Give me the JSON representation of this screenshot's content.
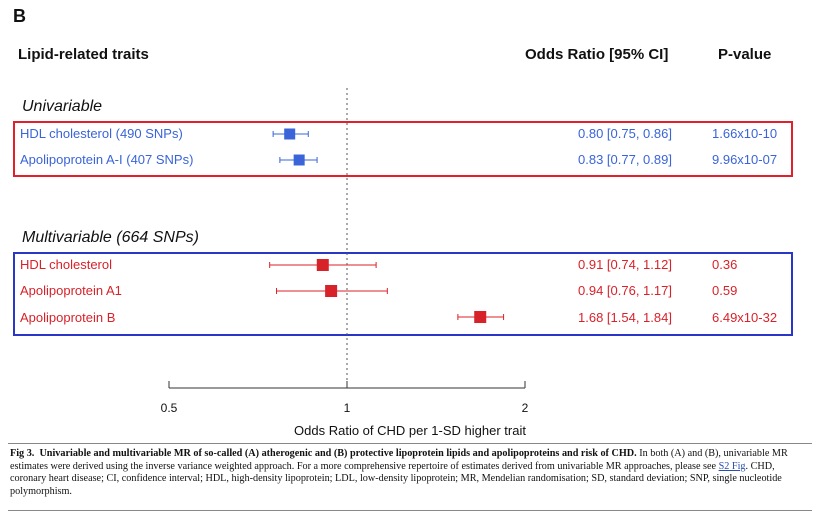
{
  "panel_letter": "B",
  "headers": {
    "traits": "Lipid-related traits",
    "or": "Odds Ratio [95% CI]",
    "p": "P-value"
  },
  "groups": [
    {
      "title": "Univariable"
    },
    {
      "title": "Multivariable (664 SNPs)"
    }
  ],
  "colors": {
    "univariable": "#3a64d8",
    "multivariable": "#d8222a",
    "univariable_box": "#e0202a",
    "multivariable_box": "#2a36c8"
  },
  "chart_data": {
    "type": "forest",
    "xlabel": "Odds Ratio of CHD per 1-SD higher trait",
    "x_scale": "log",
    "xlim": [
      0.5,
      2
    ],
    "ticks": [
      0.5,
      1,
      2
    ],
    "tick_labels": [
      "0.5",
      "1",
      "2"
    ],
    "reference_line": 1,
    "rows": [
      {
        "group": 0,
        "label": "HDL cholesterol (490 SNPs)",
        "or": 0.8,
        "lo": 0.75,
        "hi": 0.86,
        "ci_text": "0.80 [0.75, 0.86]",
        "p": "1.66x10-10"
      },
      {
        "group": 0,
        "label": "Apolipoprotein A-I (407 SNPs)",
        "or": 0.83,
        "lo": 0.77,
        "hi": 0.89,
        "ci_text": "0.83 [0.77, 0.89]",
        "p": "9.96x10-07"
      },
      {
        "group": 1,
        "label": "HDL cholesterol",
        "or": 0.91,
        "lo": 0.74,
        "hi": 1.12,
        "ci_text": "0.91 [0.74, 1.12]",
        "p": "0.36"
      },
      {
        "group": 1,
        "label": "Apolipoprotein A1",
        "or": 0.94,
        "lo": 0.76,
        "hi": 1.17,
        "ci_text": "0.94 [0.76, 1.17]",
        "p": "0.59"
      },
      {
        "group": 1,
        "label": "Apolipoprotein B",
        "or": 1.68,
        "lo": 1.54,
        "hi": 1.84,
        "ci_text": "1.68 [1.54, 1.84]",
        "p": "6.49x10-32"
      }
    ]
  },
  "caption": {
    "fig_label": "Fig 3.",
    "fig_title": "Univariable and multivariable MR of so-called (A) atherogenic and (B) protective lipoprotein lipids and apolipoproteins and risk of CHD.",
    "text_before_link": "In both (A) and (B), univariable MR estimates were derived using the inverse variance weighted approach. For a more comprehensive repertoire of estimates derived from univariable MR approaches, please see",
    "link_text": "S2 Fig",
    "text_after_link": ". CHD, coronary heart disease; CI, confidence interval; HDL, high-density lipoprotein; LDL, low-density lipoprotein; MR, Mendelian randomisation; SD, standard deviation; SNP, single nucleotide polymorphism."
  }
}
